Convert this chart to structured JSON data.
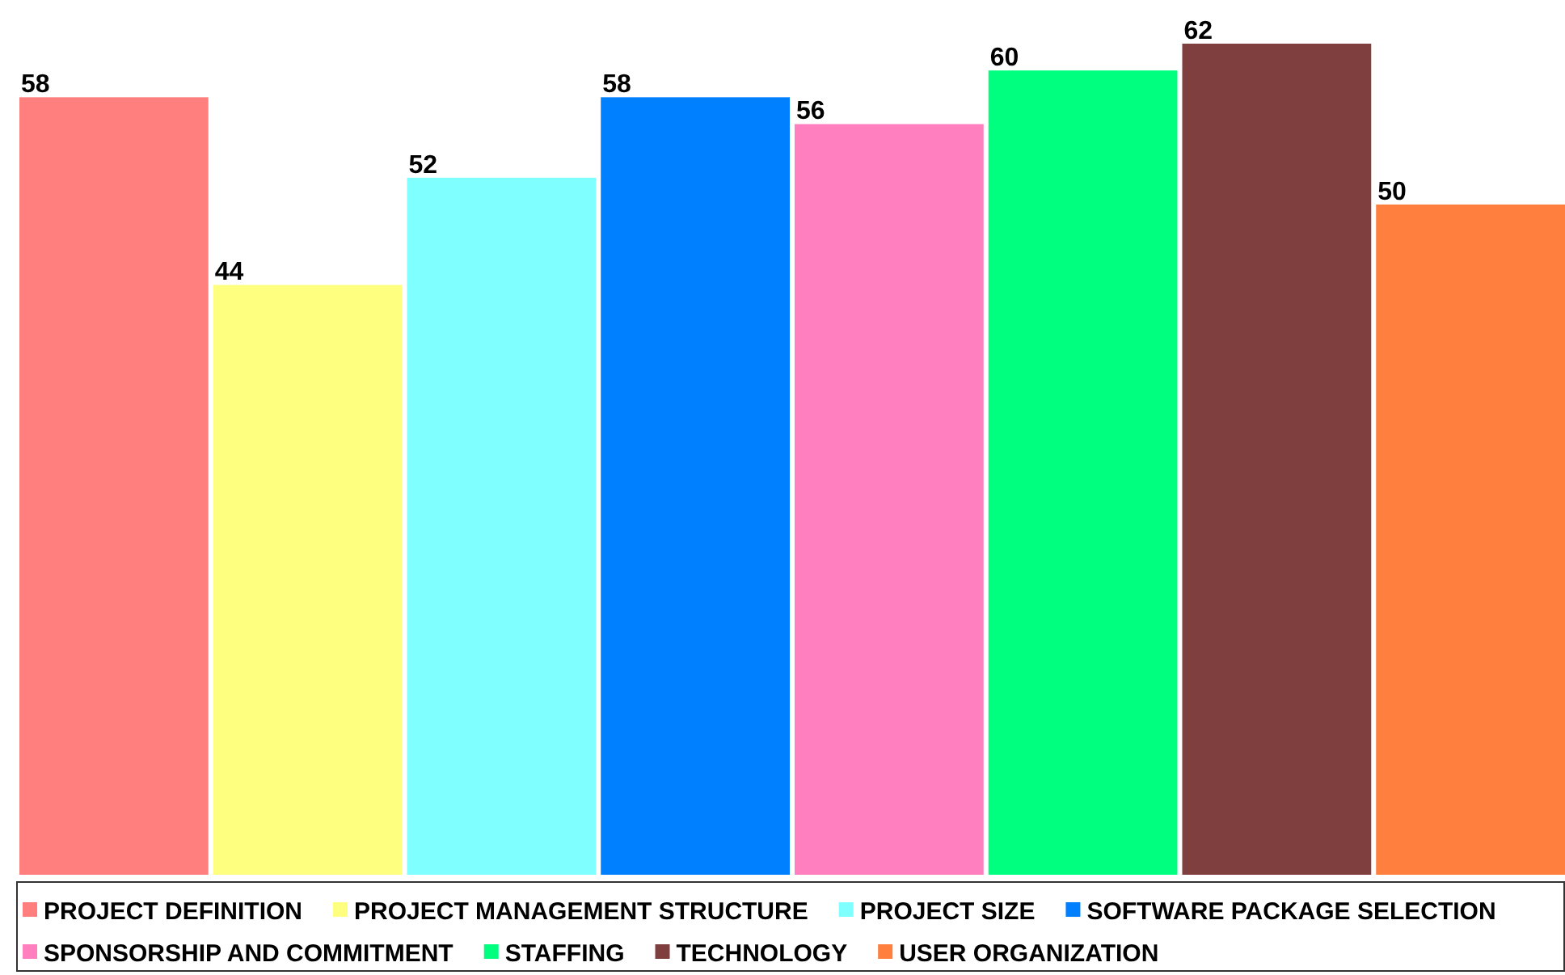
{
  "chart_data": {
    "type": "bar",
    "categories": [
      null,
      null,
      null,
      null,
      null,
      null,
      null,
      null
    ],
    "stacked": true,
    "data_labels": true,
    "legend": "bottom",
    "series": [
      {
        "name": "PROJECT DEFINITION",
        "color": "#ff7f7f",
        "values": [
          58,
          null,
          null,
          null,
          null,
          null,
          null,
          null
        ]
      },
      {
        "name": "PROJECT MANAGEMENT STRUCTURE",
        "color": "#ffff7f",
        "values": [
          null,
          44,
          null,
          null,
          null,
          null,
          null,
          null
        ]
      },
      {
        "name": "PROJECT SIZE",
        "color": "#7fffff",
        "values": [
          null,
          null,
          52,
          null,
          null,
          null,
          null,
          null
        ]
      },
      {
        "name": "SOFTWARE PACKAGE SELECTION",
        "color": "#007fff",
        "values": [
          null,
          null,
          null,
          58,
          null,
          null,
          null,
          null
        ]
      },
      {
        "name": "SPONSORSHIP AND COMMITMENT",
        "color": "#ff7fbf",
        "values": [
          null,
          null,
          null,
          null,
          56,
          null,
          null,
          null
        ]
      },
      {
        "name": "STAFFING",
        "color": "#00ff7f",
        "values": [
          null,
          null,
          null,
          null,
          null,
          60,
          null,
          null
        ]
      },
      {
        "name": "TECHNOLOGY",
        "color": "#7f3f3f",
        "values": [
          null,
          null,
          null,
          null,
          null,
          null,
          62,
          null
        ]
      },
      {
        "name": "USER ORGANIZATION",
        "color": "#ff7f3f",
        "values": [
          null,
          null,
          null,
          null,
          null,
          null,
          null,
          50
        ]
      }
    ]
  }
}
